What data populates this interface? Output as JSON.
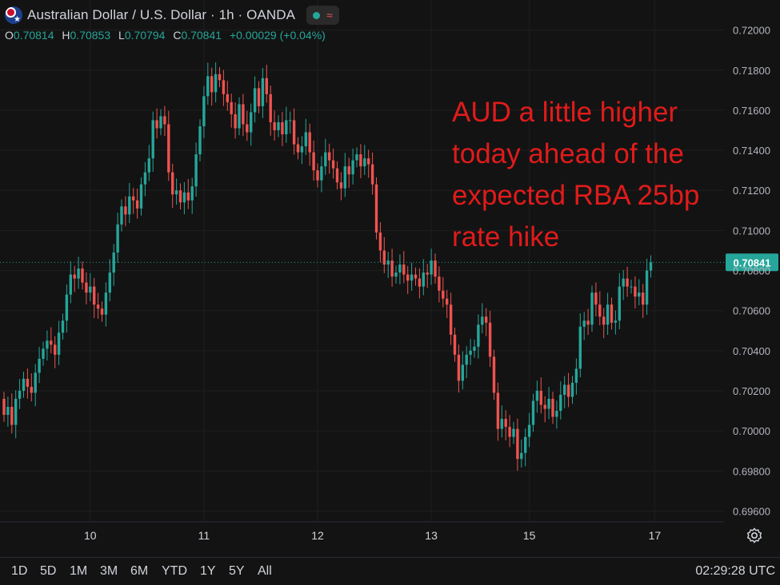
{
  "header": {
    "title": "Australian Dollar / U.S. Dollar · 1h · OANDA",
    "status_wave": "≈",
    "ohlc": {
      "o_label": "O",
      "o_value": "0.70814",
      "h_label": "H",
      "h_value": "0.70853",
      "l_label": "L",
      "l_value": "0.70794",
      "c_label": "C",
      "c_value": "0.70841",
      "change": "+0.00029 (+0.04%)"
    }
  },
  "annotation": "AUD a little higher today ahead of the expected RBA 25bp rate hike",
  "bottom_bar": {
    "ranges": [
      "1D",
      "5D",
      "1M",
      "3M",
      "6M",
      "YTD",
      "1Y",
      "5Y",
      "All"
    ],
    "clock": "02:29:28 UTC"
  },
  "colors": {
    "up": "#26a69a",
    "down": "#ef5350",
    "background": "#131313",
    "annotation": "#e01b1b",
    "last_price": "#26a69a"
  },
  "chart_data": {
    "type": "candlestick",
    "title": "Australian Dollar / U.S. Dollar · 1h · OANDA",
    "ylim": [
      0.6955,
      0.7215
    ],
    "y_ticks": [
      "0.72000",
      "0.71800",
      "0.71600",
      "0.71400",
      "0.71200",
      "0.71000",
      "0.70800",
      "0.70600",
      "0.70400",
      "0.70200",
      "0.70000",
      "0.69800",
      "0.69600"
    ],
    "y_tick_values": [
      0.72,
      0.718,
      0.716,
      0.714,
      0.712,
      0.71,
      0.708,
      0.706,
      0.704,
      0.702,
      0.7,
      0.698,
      0.696
    ],
    "x_ticks": [
      {
        "label": "10",
        "index": 22
      },
      {
        "label": "11",
        "index": 51
      },
      {
        "label": "12",
        "index": 80
      },
      {
        "label": "13",
        "index": 109
      },
      {
        "label": "15",
        "index": 134
      },
      {
        "label": "17",
        "index": 166
      }
    ],
    "last_price": 0.70841,
    "last_price_label": "0.70841",
    "close": [
      0.7008,
      0.7012,
      0.7003,
      0.7016,
      0.702,
      0.7026,
      0.7022,
      0.7019,
      0.7029,
      0.7036,
      0.7041,
      0.7045,
      0.7043,
      0.7038,
      0.7049,
      0.7055,
      0.7068,
      0.7078,
      0.7076,
      0.7081,
      0.7074,
      0.7069,
      0.7072,
      0.7063,
      0.7061,
      0.7058,
      0.7069,
      0.7079,
      0.7089,
      0.7103,
      0.7112,
      0.7108,
      0.7117,
      0.7115,
      0.7111,
      0.7123,
      0.7129,
      0.7136,
      0.7155,
      0.7151,
      0.7157,
      0.7153,
      0.7129,
      0.7118,
      0.712,
      0.7114,
      0.7119,
      0.7115,
      0.7122,
      0.7138,
      0.7152,
      0.7167,
      0.7177,
      0.7169,
      0.7178,
      0.7175,
      0.7168,
      0.7164,
      0.7158,
      0.7151,
      0.7163,
      0.7153,
      0.7149,
      0.7159,
      0.7171,
      0.7162,
      0.7176,
      0.7168,
      0.7154,
      0.715,
      0.7154,
      0.7148,
      0.7155,
      0.7155,
      0.7143,
      0.7139,
      0.7142,
      0.7149,
      0.7139,
      0.713,
      0.7125,
      0.7132,
      0.7139,
      0.7135,
      0.7131,
      0.7124,
      0.7121,
      0.7132,
      0.7128,
      0.7135,
      0.7138,
      0.7132,
      0.7136,
      0.7133,
      0.7123,
      0.7099,
      0.709,
      0.7083,
      0.7085,
      0.7077,
      0.7079,
      0.7083,
      0.7078,
      0.7075,
      0.7078,
      0.7076,
      0.7072,
      0.7079,
      0.7078,
      0.7085,
      0.7077,
      0.707,
      0.7066,
      0.7063,
      0.7048,
      0.7038,
      0.7025,
      0.7033,
      0.7038,
      0.704,
      0.7042,
      0.7053,
      0.7057,
      0.7054,
      0.7037,
      0.7019,
      0.7001,
      0.7006,
      0.7002,
      0.6997,
      0.7001,
      0.6986,
      0.6989,
      0.6997,
      0.7003,
      0.7015,
      0.702,
      0.7013,
      0.7011,
      0.7016,
      0.7007,
      0.701,
      0.7018,
      0.7023,
      0.7017,
      0.7024,
      0.7031,
      0.7052,
      0.7055,
      0.7053,
      0.7069,
      0.7063,
      0.7057,
      0.7053,
      0.7063,
      0.7054,
      0.7055,
      0.7072,
      0.7076,
      0.7072,
      0.7072,
      0.7067,
      0.7069,
      0.7063,
      0.708,
      0.70841
    ],
    "open_first": 0.7016
  }
}
